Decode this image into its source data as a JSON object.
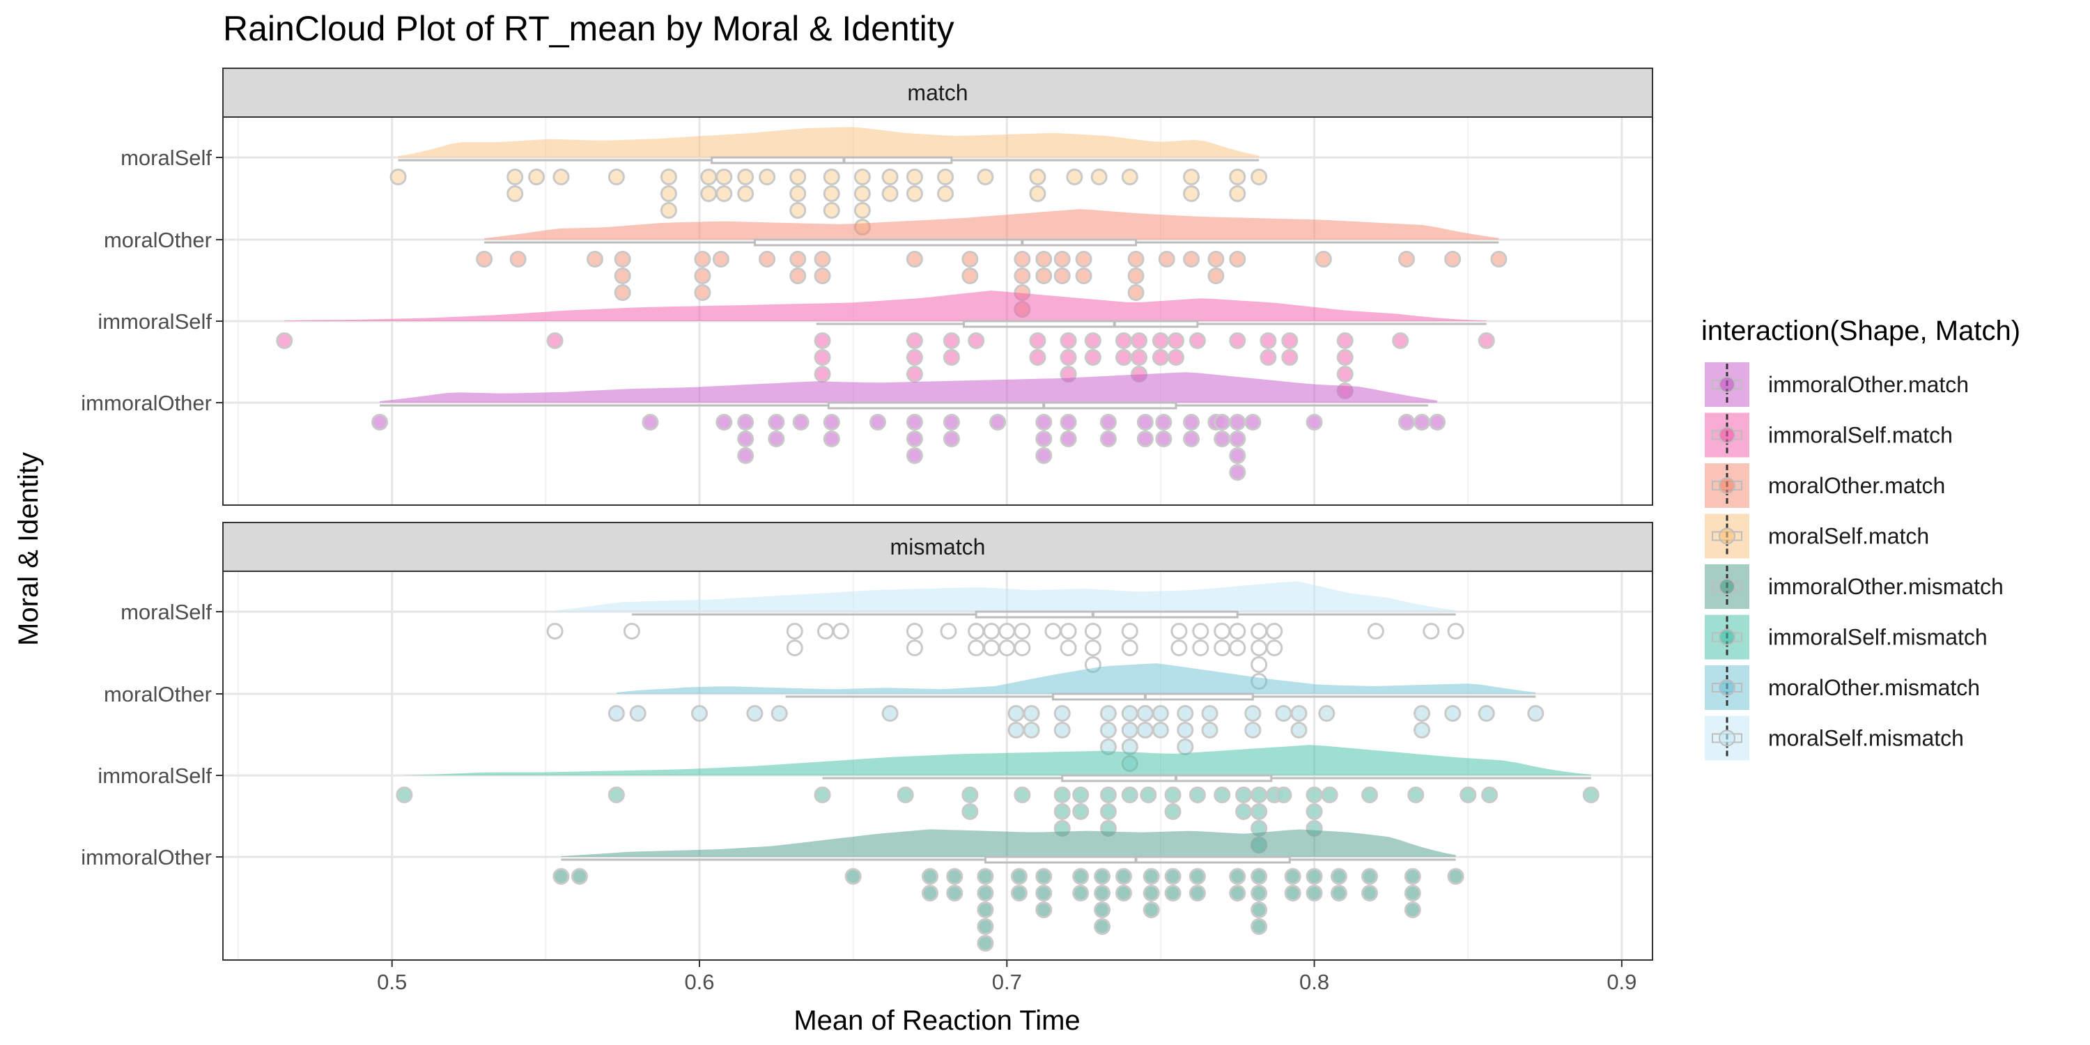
{
  "chart_data": {
    "type": "raincloud",
    "title": "RainCloud Plot of RT_mean by Moral & Identity",
    "xlabel": "Mean of Reaction Time",
    "ylabel": "Moral & Identity",
    "xlim": [
      0.445,
      0.91
    ],
    "x_ticks": [
      0.5,
      0.6,
      0.7,
      0.8,
      0.9
    ],
    "x_tick_labels": [
      "0.5",
      "0.6",
      "0.7",
      "0.8",
      "0.9"
    ],
    "categories": [
      "moralSelf",
      "moralOther",
      "immoralSelf",
      "immoralOther"
    ],
    "legend": {
      "title": "interaction(Shape, Match)",
      "position": "right",
      "entries": [
        {
          "label": "immoralOther.match",
          "color": "#c557c7"
        },
        {
          "label": "immoralSelf.match",
          "color": "#f25aa8"
        },
        {
          "label": "moralOther.match",
          "color": "#f3886f"
        },
        {
          "label": "moralSelf.match",
          "color": "#f9c27c"
        },
        {
          "label": "immoralOther.mismatch",
          "color": "#4d9c8a"
        },
        {
          "label": "immoralSelf.mismatch",
          "color": "#3fbfa6"
        },
        {
          "label": "moralOther.mismatch",
          "color": "#6cc0d4"
        },
        {
          "label": "moralSelf.mismatch",
          "color": "#c3e8f5"
        }
      ]
    },
    "panels": [
      {
        "label": "match",
        "series": [
          {
            "name": "moralSelf.match",
            "category": "moralSelf",
            "color": "#f9c27c",
            "point_color": "#fde3c0",
            "box": {
              "min": 0.502,
              "q1": 0.604,
              "median": 0.647,
              "q3": 0.682,
              "max": 0.782
            },
            "points": [
              0.502,
              0.54,
              0.54,
              0.547,
              0.555,
              0.573,
              0.59,
              0.59,
              0.59,
              0.603,
              0.603,
              0.608,
              0.608,
              0.615,
              0.615,
              0.622,
              0.632,
              0.632,
              0.632,
              0.643,
              0.643,
              0.643,
              0.653,
              0.653,
              0.653,
              0.653,
              0.662,
              0.662,
              0.67,
              0.67,
              0.68,
              0.68,
              0.693,
              0.71,
              0.71,
              0.722,
              0.73,
              0.74,
              0.76,
              0.76,
              0.775,
              0.775,
              0.782
            ],
            "density": [
              0.3,
              0.5,
              0.5,
              0.6,
              0.55,
              0.6,
              0.7,
              0.8,
              0.95,
              1.0,
              0.8,
              0.7,
              0.75,
              0.8,
              0.7,
              0.5,
              0.6,
              0.4
            ]
          },
          {
            "name": "moralOther.match",
            "category": "moralOther",
            "color": "#f3886f",
            "point_color": "#f9c0b0",
            "box": {
              "min": 0.53,
              "q1": 0.618,
              "median": 0.705,
              "q3": 0.742,
              "max": 0.86
            },
            "points": [
              0.53,
              0.541,
              0.566,
              0.575,
              0.575,
              0.575,
              0.601,
              0.601,
              0.601,
              0.607,
              0.622,
              0.632,
              0.632,
              0.64,
              0.64,
              0.67,
              0.688,
              0.688,
              0.705,
              0.705,
              0.705,
              0.705,
              0.712,
              0.712,
              0.718,
              0.718,
              0.725,
              0.725,
              0.742,
              0.742,
              0.742,
              0.752,
              0.76,
              0.768,
              0.768,
              0.775,
              0.803,
              0.83,
              0.845,
              0.86
            ],
            "density": [
              0.3,
              0.35,
              0.4,
              0.55,
              0.6,
              0.55,
              0.5,
              0.6,
              0.7,
              0.85,
              1.0,
              0.85,
              0.75,
              0.7,
              0.65,
              0.55,
              0.45,
              0.35
            ]
          },
          {
            "name": "immoralSelf.match",
            "category": "immoralSelf",
            "color": "#f25aa8",
            "point_color": "#f6a4cf",
            "box": {
              "min": 0.638,
              "q1": 0.686,
              "median": 0.735,
              "q3": 0.762,
              "max": 0.856
            },
            "points": [
              0.465,
              0.553,
              0.64,
              0.64,
              0.64,
              0.67,
              0.67,
              0.67,
              0.682,
              0.682,
              0.69,
              0.71,
              0.71,
              0.72,
              0.72,
              0.72,
              0.728,
              0.728,
              0.738,
              0.738,
              0.743,
              0.743,
              0.743,
              0.75,
              0.75,
              0.755,
              0.755,
              0.762,
              0.775,
              0.785,
              0.785,
              0.792,
              0.792,
              0.81,
              0.81,
              0.81,
              0.81,
              0.828,
              0.856
            ],
            "density": [
              0.1,
              0.05,
              0.1,
              0.2,
              0.35,
              0.45,
              0.5,
              0.55,
              0.6,
              0.75,
              1.0,
              0.8,
              0.6,
              0.75,
              0.6,
              0.35,
              0.2,
              0.1
            ]
          },
          {
            "name": "immoralOther.match",
            "category": "immoralOther",
            "color": "#c557c7",
            "point_color": "#dc9ee0",
            "box": {
              "min": 0.496,
              "q1": 0.642,
              "median": 0.712,
              "q3": 0.755,
              "max": 0.837
            },
            "points": [
              0.496,
              0.584,
              0.608,
              0.615,
              0.615,
              0.615,
              0.625,
              0.625,
              0.633,
              0.643,
              0.643,
              0.658,
              0.67,
              0.67,
              0.67,
              0.682,
              0.682,
              0.697,
              0.712,
              0.712,
              0.712,
              0.72,
              0.72,
              0.733,
              0.733,
              0.745,
              0.745,
              0.751,
              0.751,
              0.76,
              0.76,
              0.768,
              0.77,
              0.77,
              0.775,
              0.775,
              0.775,
              0.775,
              0.78,
              0.8,
              0.83,
              0.835,
              0.84
            ],
            "density": [
              0.3,
              0.35,
              0.3,
              0.35,
              0.45,
              0.5,
              0.6,
              0.7,
              0.65,
              0.7,
              0.75,
              0.8,
              0.9,
              1.0,
              0.8,
              0.6,
              0.5,
              0.45
            ]
          }
        ]
      },
      {
        "label": "mismatch",
        "series": [
          {
            "name": "moralSelf.mismatch",
            "category": "moralSelf",
            "color": "#c3e8f5",
            "point_color": "#ffffff",
            "box": {
              "min": 0.578,
              "q1": 0.69,
              "median": 0.728,
              "q3": 0.775,
              "max": 0.846
            },
            "points": [
              0.553,
              0.578,
              0.631,
              0.631,
              0.641,
              0.646,
              0.67,
              0.67,
              0.681,
              0.69,
              0.69,
              0.695,
              0.695,
              0.7,
              0.7,
              0.705,
              0.705,
              0.715,
              0.72,
              0.72,
              0.728,
              0.728,
              0.728,
              0.74,
              0.74,
              0.756,
              0.756,
              0.763,
              0.763,
              0.77,
              0.77,
              0.775,
              0.775,
              0.782,
              0.782,
              0.782,
              0.782,
              0.787,
              0.787,
              0.82,
              0.838,
              0.846
            ],
            "density": [
              0.25,
              0.3,
              0.35,
              0.4,
              0.5,
              0.6,
              0.7,
              0.75,
              0.8,
              0.7,
              0.75,
              0.65,
              0.7,
              0.85,
              1.0,
              0.6,
              0.4,
              0.3
            ]
          },
          {
            "name": "moralOther.mismatch",
            "category": "moralOther",
            "color": "#6cc0d4",
            "point_color": "#cfeaf0",
            "box": {
              "min": 0.628,
              "q1": 0.715,
              "median": 0.745,
              "q3": 0.78,
              "max": 0.872
            },
            "points": [
              0.573,
              0.58,
              0.6,
              0.618,
              0.626,
              0.662,
              0.703,
              0.703,
              0.708,
              0.708,
              0.718,
              0.718,
              0.733,
              0.733,
              0.733,
              0.74,
              0.74,
              0.74,
              0.74,
              0.745,
              0.745,
              0.75,
              0.75,
              0.758,
              0.758,
              0.758,
              0.766,
              0.766,
              0.78,
              0.78,
              0.79,
              0.795,
              0.795,
              0.804,
              0.835,
              0.835,
              0.845,
              0.856,
              0.872
            ],
            "density": [
              0.3,
              0.2,
              0.25,
              0.2,
              0.15,
              0.2,
              0.15,
              0.25,
              0.6,
              0.9,
              1.0,
              0.75,
              0.5,
              0.3,
              0.25,
              0.3,
              0.35,
              0.3
            ]
          },
          {
            "name": "immoralSelf.mismatch",
            "category": "immoralSelf",
            "color": "#3fbfa6",
            "point_color": "#9fd6cb",
            "box": {
              "min": 0.64,
              "q1": 0.718,
              "median": 0.755,
              "q3": 0.786,
              "max": 0.89
            },
            "points": [
              0.504,
              0.573,
              0.64,
              0.667,
              0.688,
              0.688,
              0.705,
              0.718,
              0.718,
              0.718,
              0.724,
              0.724,
              0.733,
              0.733,
              0.733,
              0.74,
              0.746,
              0.754,
              0.754,
              0.762,
              0.77,
              0.777,
              0.777,
              0.782,
              0.782,
              0.782,
              0.782,
              0.787,
              0.79,
              0.8,
              0.8,
              0.8,
              0.805,
              0.818,
              0.833,
              0.85,
              0.857,
              0.89
            ],
            "density": [
              0.05,
              0.1,
              0.1,
              0.15,
              0.2,
              0.3,
              0.45,
              0.6,
              0.7,
              0.75,
              0.8,
              0.7,
              0.85,
              1.0,
              0.8,
              0.6,
              0.45,
              0.2
            ]
          },
          {
            "name": "immoralOther.mismatch",
            "category": "immoralOther",
            "color": "#4d9c8a",
            "point_color": "#8ec3b8",
            "box": {
              "min": 0.555,
              "q1": 0.693,
              "median": 0.742,
              "q3": 0.792,
              "max": 0.846
            },
            "points": [
              0.555,
              0.561,
              0.65,
              0.675,
              0.675,
              0.683,
              0.683,
              0.693,
              0.693,
              0.693,
              0.693,
              0.693,
              0.704,
              0.704,
              0.712,
              0.712,
              0.712,
              0.724,
              0.724,
              0.731,
              0.731,
              0.731,
              0.731,
              0.738,
              0.738,
              0.747,
              0.747,
              0.747,
              0.754,
              0.754,
              0.762,
              0.762,
              0.775,
              0.775,
              0.782,
              0.782,
              0.782,
              0.782,
              0.793,
              0.793,
              0.8,
              0.8,
              0.808,
              0.808,
              0.818,
              0.818,
              0.832,
              0.832,
              0.832,
              0.846
            ],
            "density": [
              0.15,
              0.15,
              0.2,
              0.25,
              0.35,
              0.55,
              0.75,
              0.9,
              0.85,
              0.8,
              0.85,
              0.8,
              0.85,
              0.75,
              0.9,
              0.8,
              0.6,
              0.4
            ]
          }
        ]
      }
    ]
  }
}
